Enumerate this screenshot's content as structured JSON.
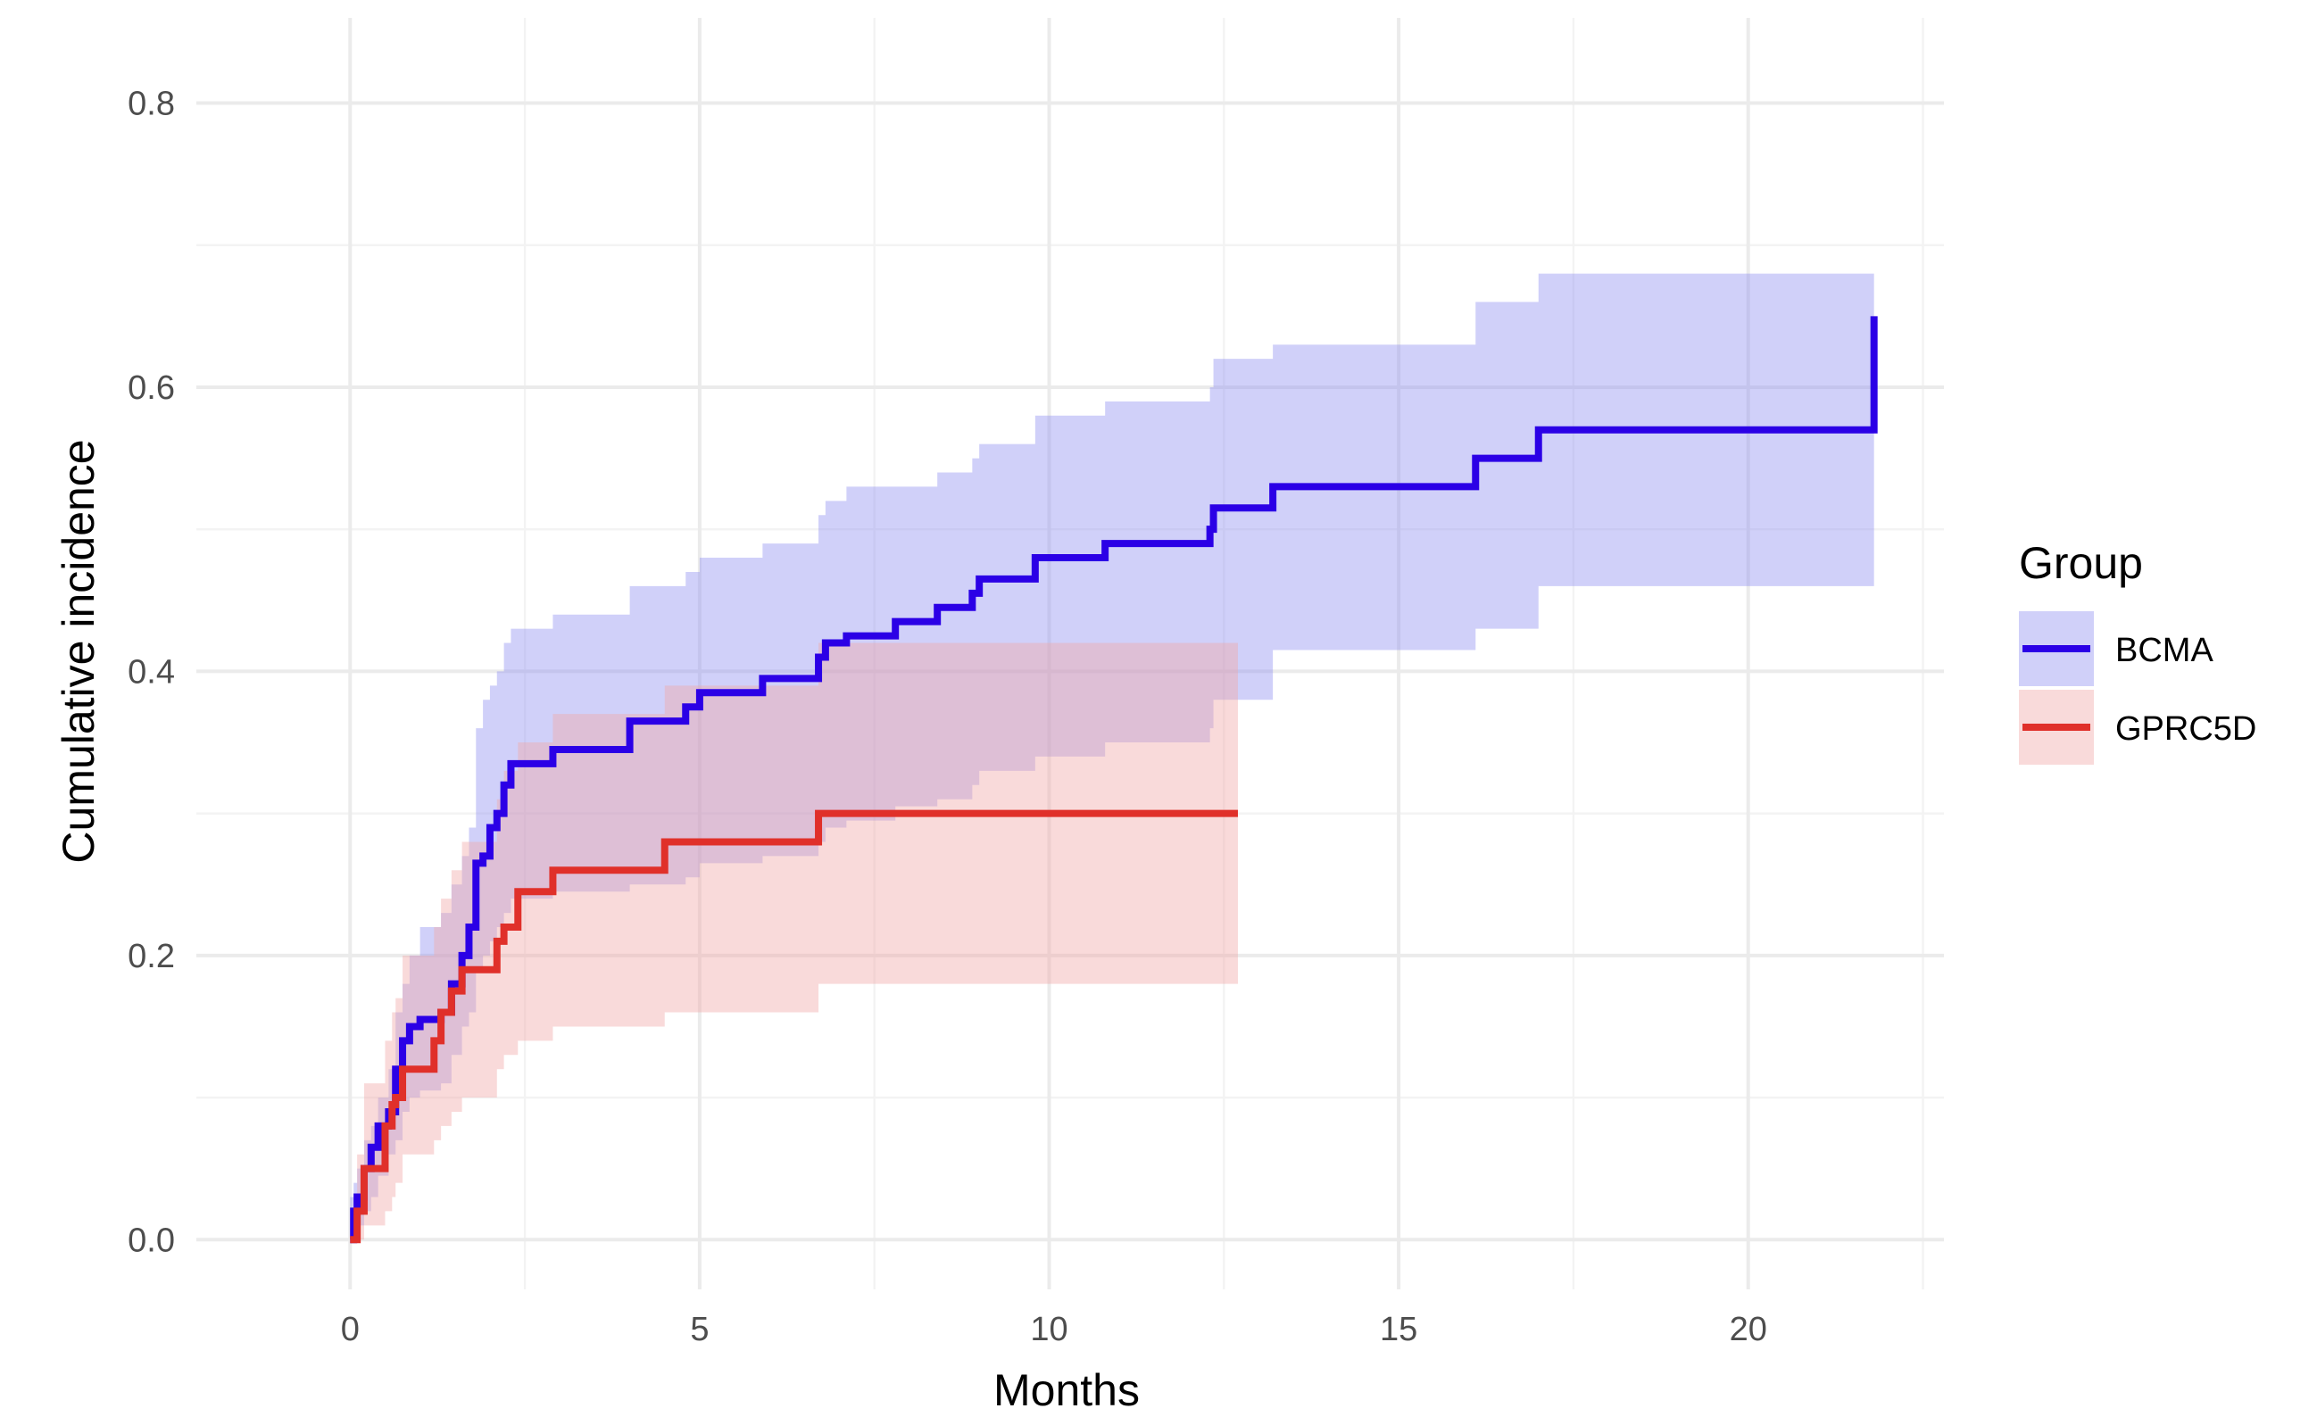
{
  "chart_data": {
    "type": "line",
    "step": true,
    "title": "",
    "xlabel": "Months",
    "ylabel": "Cumulative incidence",
    "xlim": [
      -2.2,
      22.8
    ],
    "ylim": [
      -0.035,
      0.86
    ],
    "x_ticks": [
      0,
      5,
      10,
      15,
      20
    ],
    "x_tick_labels": [
      "0",
      "5",
      "10",
      "15",
      "20"
    ],
    "y_ticks": [
      0.0,
      0.2,
      0.4,
      0.6,
      0.8
    ],
    "y_tick_labels": [
      "0.0",
      "0.2",
      "0.4",
      "0.6",
      "0.8"
    ],
    "grid": true,
    "legend": {
      "title": "Group",
      "position": "right"
    },
    "series": [
      {
        "name": "BCMA",
        "color": "#2B00E6",
        "band_color": "#8E8EF0",
        "x": [
          0,
          0.05,
          0.1,
          0.2,
          0.3,
          0.4,
          0.55,
          0.65,
          0.75,
          0.85,
          1.0,
          1.3,
          1.45,
          1.6,
          1.7,
          1.8,
          1.9,
          2.0,
          2.1,
          2.2,
          2.3,
          2.9,
          4.0,
          4.8,
          5.0,
          5.9,
          6.7,
          6.8,
          7.1,
          7.8,
          8.4,
          8.9,
          9.0,
          9.8,
          10.8,
          12.3,
          12.35,
          13.2,
          16.1,
          17.0,
          21.8,
          21.8
        ],
        "y": [
          0.0,
          0.02,
          0.03,
          0.05,
          0.065,
          0.08,
          0.09,
          0.12,
          0.14,
          0.15,
          0.155,
          0.16,
          0.18,
          0.2,
          0.22,
          0.265,
          0.27,
          0.29,
          0.3,
          0.32,
          0.335,
          0.345,
          0.365,
          0.375,
          0.385,
          0.395,
          0.41,
          0.42,
          0.425,
          0.435,
          0.445,
          0.455,
          0.465,
          0.48,
          0.49,
          0.5,
          0.515,
          0.53,
          0.55,
          0.57,
          0.57,
          0.65
        ],
        "lower": [
          0.0,
          0.005,
          0.01,
          0.02,
          0.03,
          0.045,
          0.06,
          0.07,
          0.09,
          0.1,
          0.105,
          0.11,
          0.13,
          0.15,
          0.16,
          0.19,
          0.2,
          0.21,
          0.22,
          0.23,
          0.24,
          0.245,
          0.25,
          0.255,
          0.265,
          0.27,
          0.28,
          0.29,
          0.295,
          0.305,
          0.31,
          0.32,
          0.33,
          0.34,
          0.35,
          0.36,
          0.38,
          0.415,
          0.43,
          0.46,
          0.46,
          0.46
        ],
        "upper": [
          0.03,
          0.04,
          0.05,
          0.07,
          0.08,
          0.1,
          0.12,
          0.16,
          0.18,
          0.2,
          0.22,
          0.23,
          0.25,
          0.27,
          0.29,
          0.36,
          0.38,
          0.39,
          0.4,
          0.42,
          0.43,
          0.44,
          0.46,
          0.47,
          0.48,
          0.49,
          0.51,
          0.52,
          0.53,
          0.53,
          0.54,
          0.55,
          0.56,
          0.58,
          0.59,
          0.6,
          0.62,
          0.63,
          0.66,
          0.68,
          0.68,
          0.68
        ]
      },
      {
        "name": "GPRC5D",
        "color": "#E0302A",
        "band_color": "#F0A8A8",
        "x": [
          0,
          0.1,
          0.2,
          0.5,
          0.6,
          0.65,
          0.75,
          1.2,
          1.3,
          1.45,
          1.6,
          2.1,
          2.2,
          2.4,
          2.9,
          4.5,
          6.7,
          12.7
        ],
        "y": [
          0.0,
          0.02,
          0.05,
          0.08,
          0.095,
          0.1,
          0.12,
          0.14,
          0.16,
          0.175,
          0.19,
          0.21,
          0.22,
          0.245,
          0.26,
          0.28,
          0.3,
          0.3
        ],
        "lower": [
          0.0,
          0.0,
          0.01,
          0.02,
          0.03,
          0.04,
          0.06,
          0.07,
          0.08,
          0.09,
          0.1,
          0.12,
          0.13,
          0.14,
          0.15,
          0.16,
          0.18,
          0.18
        ],
        "upper": [
          0.02,
          0.06,
          0.11,
          0.14,
          0.16,
          0.17,
          0.2,
          0.22,
          0.24,
          0.26,
          0.28,
          0.31,
          0.33,
          0.35,
          0.37,
          0.39,
          0.42,
          0.42
        ]
      }
    ]
  }
}
